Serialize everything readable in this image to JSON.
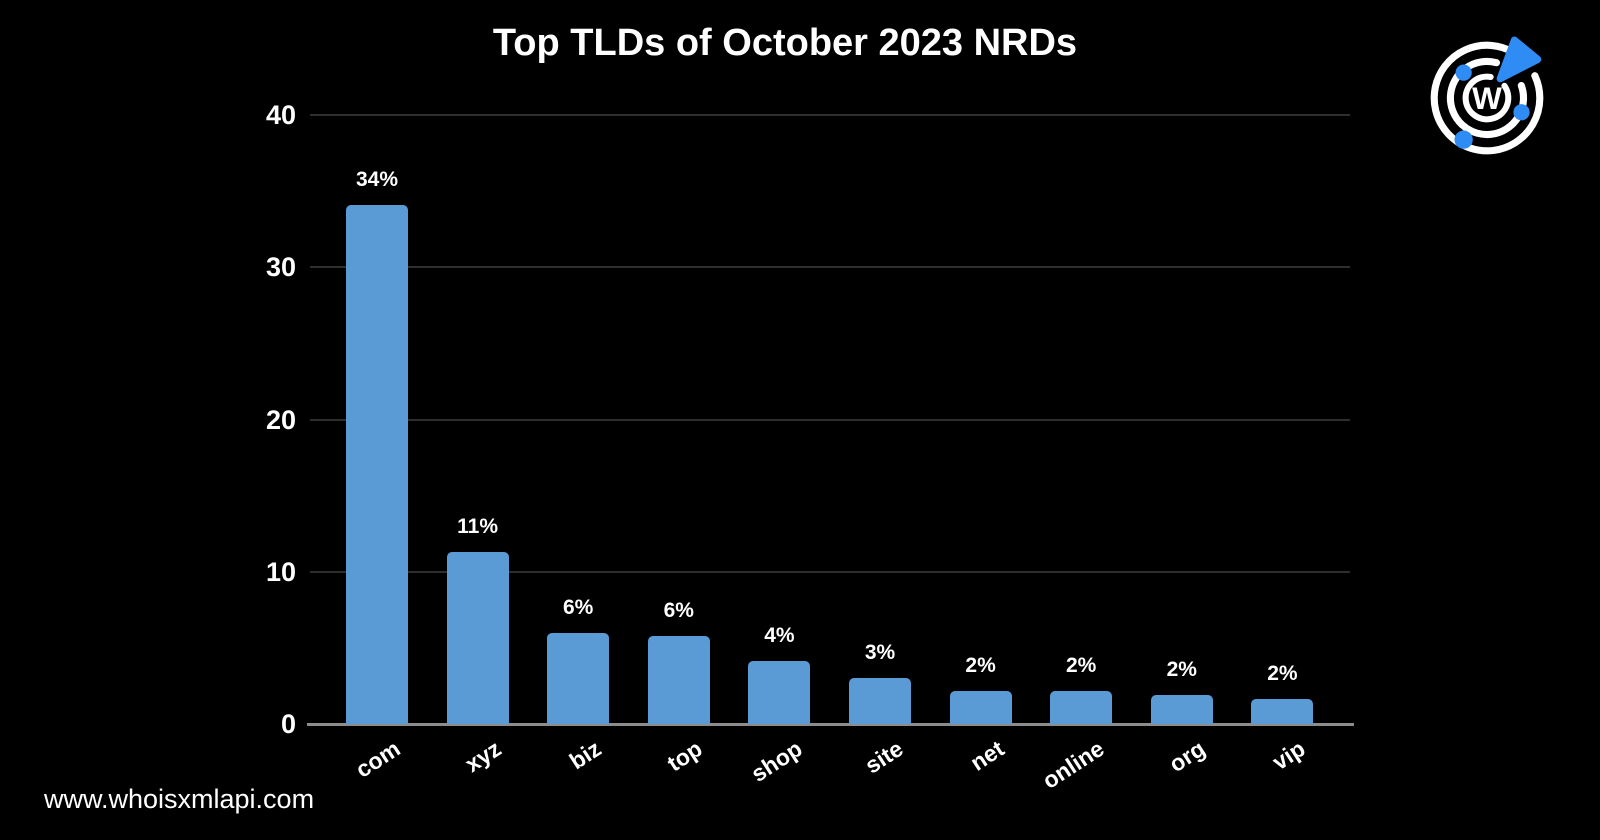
{
  "page": {
    "background_color": "#000000",
    "footer_url": "www.whoisxmlapi.com"
  },
  "logo": {
    "name": "whoisxmlapi-radar-logo",
    "letter": "W",
    "ring_color": "#FFFFFF",
    "accent_color": "#2F8CF4"
  },
  "chart_data": {
    "type": "bar",
    "title": "Top TLDs of October 2023 NRDs",
    "categories": [
      "com",
      "xyz",
      "biz",
      "top",
      "shop",
      "site",
      "net",
      "online",
      "org",
      "vip"
    ],
    "values": [
      34,
      11,
      6,
      6,
      4,
      3,
      2,
      2,
      2,
      2
    ],
    "values_precise": [
      34.1,
      11.3,
      6.0,
      5.75,
      4.15,
      3.0,
      2.2,
      2.2,
      1.9,
      1.65
    ],
    "bar_labels": [
      "34%",
      "11%",
      "6%",
      "6%",
      "4%",
      "3%",
      "2%",
      "2%",
      "2%",
      "2%"
    ],
    "unit": "%",
    "xlabel": "",
    "ylabel": "",
    "yticks": [
      0,
      10,
      20,
      30,
      40
    ],
    "ylim": [
      0,
      40
    ],
    "grid": true,
    "legend": "none",
    "x_tick_rotation_deg": -33,
    "bar_color": "#5B9BD5",
    "text_color": "#FFFFFF",
    "gridline_color": "#2E2E2E",
    "axis_line_color": "#8C8C8C"
  }
}
